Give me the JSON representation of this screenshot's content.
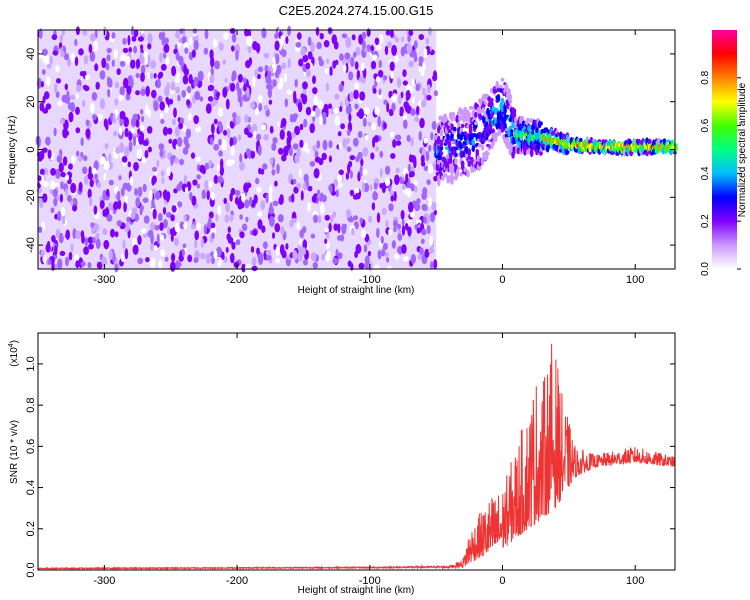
{
  "title": "C2E5.2024.274.15.00.G15",
  "chart_data": [
    {
      "type": "heatmap",
      "xlabel": "Height of straight line (km)",
      "ylabel": "Frequency (Hz)",
      "xlim": [
        -350,
        130
      ],
      "ylim": [
        -50,
        50
      ],
      "x_ticks": [
        -300,
        -200,
        -100,
        0,
        100
      ],
      "x_tick_labels": [
        "-300",
        "-200",
        "-100",
        "0",
        "100"
      ],
      "y_ticks": [
        -40,
        -20,
        0,
        20,
        40
      ],
      "y_tick_labels": [
        "-40",
        "-20",
        "0",
        "20",
        "40"
      ],
      "noise_region_x": [
        -350,
        -50
      ],
      "signal_region_x": [
        -50,
        130
      ],
      "carrier_frequency_trend": [
        {
          "x": -40,
          "f": 0
        },
        {
          "x": -20,
          "f": 5
        },
        {
          "x": 0,
          "f": 18
        },
        {
          "x": 10,
          "f": 6
        },
        {
          "x": 30,
          "f": 5
        },
        {
          "x": 50,
          "f": 2
        },
        {
          "x": 80,
          "f": 1
        },
        {
          "x": 130,
          "f": 1
        }
      ],
      "colorbar": {
        "label": "Normalized spectral amplitude",
        "range": [
          0,
          1
        ],
        "ticks": [
          0.0,
          0.2,
          0.4,
          0.6,
          0.8
        ],
        "tick_labels": [
          "0.0",
          "0.2",
          "0.4",
          "0.6",
          "0.8"
        ],
        "colors": [
          "#ffffff",
          "#cc99ff",
          "#7f00ff",
          "#0000ff",
          "#00c0ff",
          "#00ff80",
          "#40ff00",
          "#ffff00",
          "#ff8000",
          "#ff0000",
          "#ff00a0"
        ]
      }
    },
    {
      "type": "line",
      "xlabel": "Height of straight line (km)",
      "ylabel": "SNR (10 * v/v)",
      "y_multiplier_label": "(x10",
      "y_multiplier_exp": "4",
      "xlim": [
        -350,
        130
      ],
      "ylim": [
        0,
        1.15
      ],
      "x_ticks": [
        -300,
        -200,
        -100,
        0,
        100
      ],
      "x_tick_labels": [
        "-300",
        "-200",
        "-100",
        "0",
        "100"
      ],
      "y_ticks": [
        0.0,
        0.2,
        0.4,
        0.6,
        0.8,
        1.0
      ],
      "y_tick_labels": [
        "0.0",
        "0.2",
        "0.4",
        "0.6",
        "0.8",
        "1.0"
      ],
      "series": [
        {
          "color": "#ee3333",
          "baseline": 0.02,
          "envelope": [
            {
              "x": -350,
              "y": 0.01
            },
            {
              "x": -100,
              "y": 0.015
            },
            {
              "x": -40,
              "y": 0.02
            },
            {
              "x": -30,
              "y": 0.05
            },
            {
              "x": -25,
              "y": 0.2
            },
            {
              "x": -10,
              "y": 0.35
            },
            {
              "x": 0,
              "y": 0.4
            },
            {
              "x": 10,
              "y": 0.6
            },
            {
              "x": 20,
              "y": 0.8
            },
            {
              "x": 25,
              "y": 0.95
            },
            {
              "x": 30,
              "y": 0.9
            },
            {
              "x": 38,
              "y": 1.15
            },
            {
              "x": 45,
              "y": 0.85
            },
            {
              "x": 55,
              "y": 0.6
            },
            {
              "x": 70,
              "y": 0.56
            },
            {
              "x": 100,
              "y": 0.6
            },
            {
              "x": 130,
              "y": 0.55
            }
          ],
          "floor": [
            {
              "x": -350,
              "y": 0.005
            },
            {
              "x": -30,
              "y": 0.01
            },
            {
              "x": -20,
              "y": 0.05
            },
            {
              "x": 0,
              "y": 0.1
            },
            {
              "x": 20,
              "y": 0.2
            },
            {
              "x": 40,
              "y": 0.3
            },
            {
              "x": 55,
              "y": 0.45
            },
            {
              "x": 70,
              "y": 0.5
            },
            {
              "x": 100,
              "y": 0.52
            },
            {
              "x": 130,
              "y": 0.5
            }
          ]
        }
      ]
    }
  ]
}
